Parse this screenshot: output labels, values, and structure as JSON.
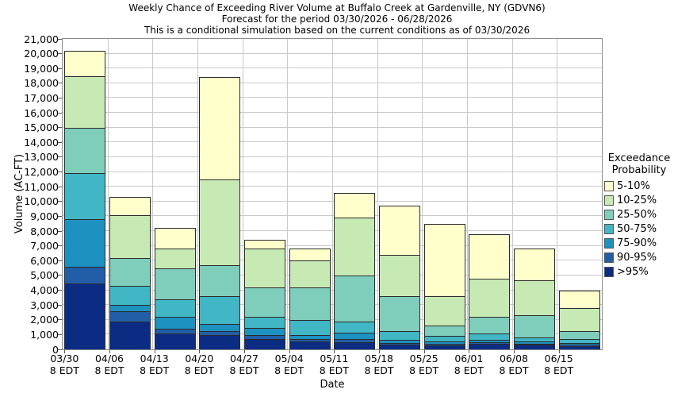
{
  "chart_data": {
    "type": "bar",
    "stacked": true,
    "title": "Weekly Chance of Exceeding River Volume at Buffalo Creek at Gardenville, NY (GDVN6)",
    "subtitle": "Forecast for the period 03/30/2026 - 06/28/2026",
    "note": "This is a conditional simulation based on the current conditions as of 03/30/2026",
    "xlabel": "Date",
    "ylabel": "Volume (AC-FT)",
    "ylim": [
      0,
      21000
    ],
    "ytick_step": 1000,
    "grid": true,
    "legend_position": "right",
    "legend_title": [
      "Exceedance",
      "Probability"
    ],
    "categories": [
      {
        "date": "03/30",
        "time": "8 EDT"
      },
      {
        "date": "04/06",
        "time": "8 EDT"
      },
      {
        "date": "04/13",
        "time": "8 EDT"
      },
      {
        "date": "04/20",
        "time": "8 EDT"
      },
      {
        "date": "04/27",
        "time": "8 EDT"
      },
      {
        "date": "05/04",
        "time": "8 EDT"
      },
      {
        "date": "05/11",
        "time": "8 EDT"
      },
      {
        "date": "05/18",
        "time": "8 EDT"
      },
      {
        "date": "05/25",
        "time": "8 EDT"
      },
      {
        "date": "06/01",
        "time": "8 EDT"
      },
      {
        "date": "06/08",
        "time": "8 EDT"
      },
      {
        "date": "06/15",
        "time": "8 EDT"
      }
    ],
    "series_note": "series listed bottom-to-top of stack; cumulative_top = volume (AC-FT) at top of each band per category",
    "series": [
      {
        "name": ">95%",
        "color": "#0C2C84",
        "cumulative_top": [
          4450,
          1900,
          1100,
          950,
          700,
          540,
          490,
          300,
          280,
          350,
          300,
          200
        ]
      },
      {
        "name": "90-95%",
        "color": "#225EA8",
        "cumulative_top": [
          5600,
          2600,
          1400,
          1250,
          950,
          680,
          700,
          450,
          400,
          500,
          400,
          300
        ]
      },
      {
        "name": "75-90%",
        "color": "#1D91C0",
        "cumulative_top": [
          8800,
          3000,
          2200,
          1700,
          1470,
          950,
          1150,
          650,
          550,
          650,
          550,
          450
        ]
      },
      {
        "name": "50-75%",
        "color": "#41B6C4",
        "cumulative_top": [
          11900,
          4300,
          3400,
          3600,
          2200,
          2000,
          1900,
          1250,
          900,
          1050,
          800,
          700
        ]
      },
      {
        "name": "25-50%",
        "color": "#7FCDBB",
        "cumulative_top": [
          15000,
          6200,
          5500,
          5700,
          4200,
          4200,
          5000,
          3600,
          1600,
          2200,
          2300,
          1250
        ]
      },
      {
        "name": "10-25%",
        "color": "#C7E9B4",
        "cumulative_top": [
          18500,
          9100,
          6800,
          11500,
          6800,
          6000,
          8900,
          6400,
          3600,
          4800,
          4700,
          2800
        ]
      },
      {
        "name": "5-10%",
        "color": "#FFFFCC",
        "cumulative_top": [
          20200,
          10300,
          8200,
          18400,
          7400,
          6800,
          10600,
          9700,
          8500,
          7800,
          6800,
          4000
        ]
      }
    ]
  }
}
